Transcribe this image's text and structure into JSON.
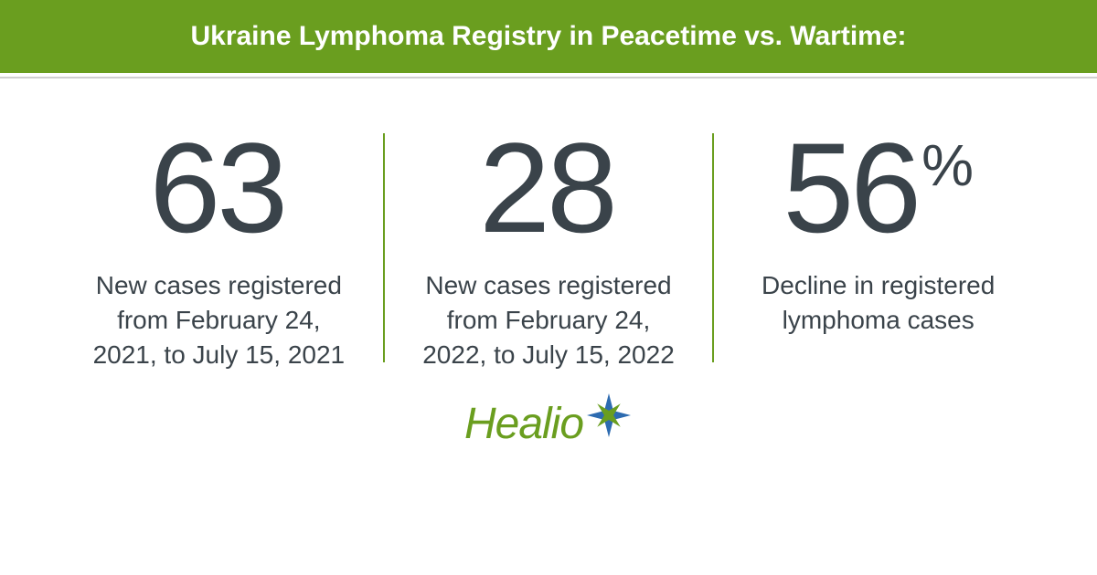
{
  "colors": {
    "header_bg": "#6a9e1f",
    "header_text": "#ffffff",
    "value_text": "#3a434a",
    "label_text": "#3a434a",
    "divider": "#6a9e1f",
    "logo_text": "#6a9e1f",
    "logo_star_primary": "#2d6bb0",
    "logo_star_secondary": "#6a9e1f"
  },
  "header": {
    "title": "Ukraine Lymphoma Registry in Peacetime vs. Wartime:"
  },
  "stats": [
    {
      "value": "63",
      "unit": "",
      "label": "New cases registered from February 24, 2021, to July 15, 2021"
    },
    {
      "value": "28",
      "unit": "",
      "label": "New cases registered from February 24, 2022, to July 15, 2022"
    },
    {
      "value": "56",
      "unit": "%",
      "label": "Decline in registered lymphoma cases"
    }
  ],
  "logo": {
    "text": "Healio"
  }
}
